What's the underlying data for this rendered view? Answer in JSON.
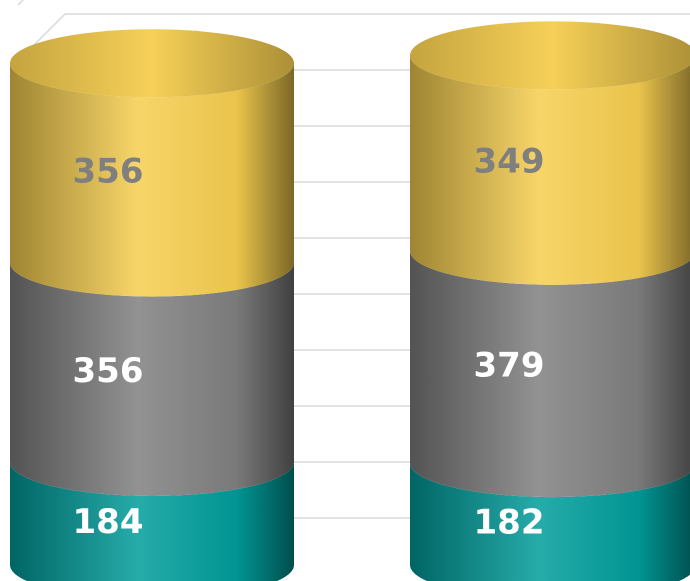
{
  "chart_data": {
    "type": "bar",
    "stacked": true,
    "three_d": "cylinder",
    "categories": [
      null,
      null
    ],
    "series": [
      {
        "color": "#009c9a",
        "label_color": "#ffffff",
        "values": [
          184,
          182
        ]
      },
      {
        "color": "#7f7f7f",
        "label_color": "#ffffff",
        "values": [
          356,
          379
        ]
      },
      {
        "color": "#f5cd4f",
        "label_color": "#7f7f7f",
        "values": [
          356,
          349
        ]
      }
    ],
    "ylim": [
      0,
      1000
    ],
    "yticks": [
      0,
      100,
      200,
      300,
      400,
      500,
      600,
      700,
      800,
      900,
      1000
    ],
    "grid": true
  }
}
